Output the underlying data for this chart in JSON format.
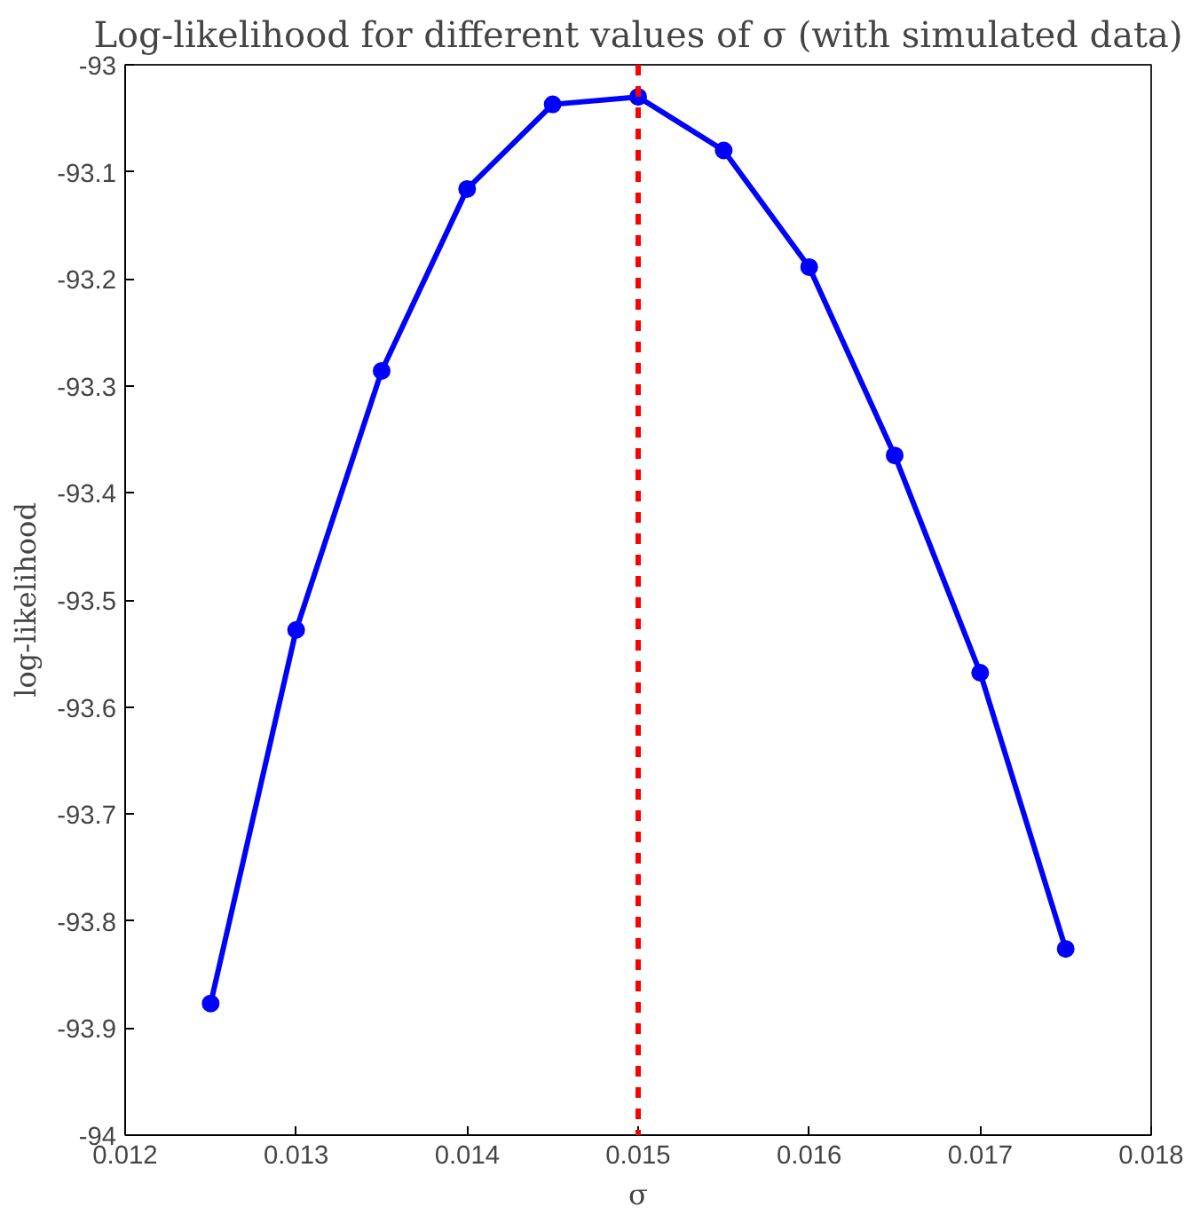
{
  "chart_data": {
    "type": "line",
    "title": "Log-likelihood for different values of σ (with simulated data)",
    "xlabel": "σ",
    "ylabel": "log-likelihood",
    "x": [
      0.0125,
      0.013,
      0.0135,
      0.014,
      0.0145,
      0.015,
      0.0155,
      0.016,
      0.0165,
      0.017,
      0.0175
    ],
    "series": [
      {
        "color": "#0000ff",
        "values": [
          -93.877,
          -93.528,
          -93.286,
          -93.116,
          -93.037,
          -93.03,
          -93.08,
          -93.189,
          -93.365,
          -93.568,
          -93.826
        ]
      }
    ],
    "xlim": [
      0.012,
      0.018
    ],
    "xticks": [
      0.012,
      0.013,
      0.014,
      0.015,
      0.016,
      0.017,
      0.018
    ],
    "ylim": [
      -94,
      -93
    ],
    "yticks": [
      -94,
      -93.9,
      -93.8,
      -93.7,
      -93.6,
      -93.5,
      -93.4,
      -93.3,
      -93.2,
      -93.1,
      -93
    ],
    "ref_lines": [
      {
        "axis": "x",
        "value": 0.015,
        "color": "#ff0000",
        "line_style": "dashed"
      }
    ],
    "marker": "circle",
    "line_style": "solid",
    "grid": false
  }
}
